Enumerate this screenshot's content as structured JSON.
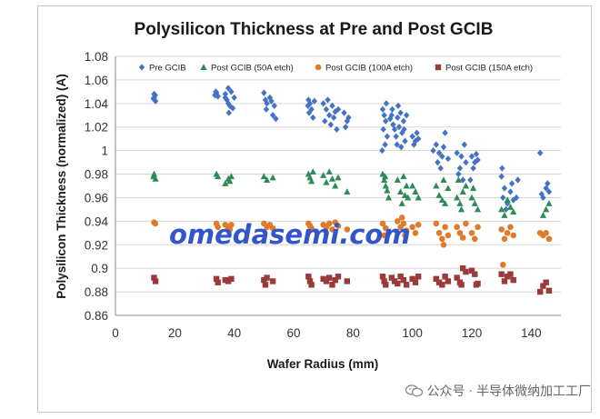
{
  "chart_data": {
    "type": "scatter",
    "title": "Polysilicon Thickness at Pre and Post GCIB",
    "xlabel": "Wafer Radius (mm)",
    "ylabel": "Polysilicon Thickness (normalized) (A)",
    "xlim": [
      0,
      150
    ],
    "ylim": [
      0.86,
      1.08
    ],
    "xticks": [
      "0",
      "20",
      "40",
      "60",
      "80",
      "100",
      "120",
      "140"
    ],
    "yticks": [
      "0.86",
      "0.88",
      "0.9",
      "0.92",
      "0.94",
      "0.96",
      "0.98",
      "1",
      "1.02",
      "1.04",
      "1.06",
      "1.08"
    ],
    "grid": "horizontal",
    "legend_position": "top",
    "series": [
      {
        "name": "Pre GCIB",
        "marker": "diamond",
        "color": "#4472c4",
        "points": [
          [
            13,
            1.048
          ],
          [
            13,
            1.045
          ],
          [
            13.5,
            1.042
          ],
          [
            12.8,
            1.044
          ],
          [
            13.4,
            1.047
          ],
          [
            34,
            1.049
          ],
          [
            33.5,
            1.047
          ],
          [
            34.5,
            1.046
          ],
          [
            33.8,
            1.05
          ],
          [
            37,
            1.045
          ],
          [
            38,
            1.04
          ],
          [
            39,
            1.05
          ],
          [
            38.5,
            1.038
          ],
          [
            37.5,
            1.043
          ],
          [
            40,
            1.045
          ],
          [
            39.5,
            1.036
          ],
          [
            38,
            1.053
          ],
          [
            37,
            1.048
          ],
          [
            38.2,
            1.032
          ],
          [
            50,
            1.049
          ],
          [
            50.5,
            1.043
          ],
          [
            51,
            1.04
          ],
          [
            52,
            1.045
          ],
          [
            50.8,
            1.035
          ],
          [
            53,
            1.03
          ],
          [
            53.5,
            1.038
          ],
          [
            52.5,
            1.042
          ],
          [
            54,
            1.027
          ],
          [
            65,
            1.043
          ],
          [
            65.5,
            1.04
          ],
          [
            66,
            1.035
          ],
          [
            64.8,
            1.038
          ],
          [
            66.5,
            1.028
          ],
          [
            67,
            1.042
          ],
          [
            65.2,
            1.032
          ],
          [
            70,
            1.04
          ],
          [
            71,
            1.035
          ],
          [
            72,
            1.03
          ],
          [
            70.5,
            1.025
          ],
          [
            73,
            1.038
          ],
          [
            74,
            1.033
          ],
          [
            72.5,
            1.022
          ],
          [
            71.5,
            1.043
          ],
          [
            73.5,
            1.028
          ],
          [
            74.5,
            1.018
          ],
          [
            75,
            1.035
          ],
          [
            77,
            1.032
          ],
          [
            78,
            1.025
          ],
          [
            77.5,
            1.02
          ],
          [
            78.5,
            1.028
          ],
          [
            90,
            1.035
          ],
          [
            90.5,
            1.03
          ],
          [
            91,
            1.025
          ],
          [
            90.2,
            1.018
          ],
          [
            91.5,
            1.012
          ],
          [
            90.8,
            1.005
          ],
          [
            89.8,
            1.0
          ],
          [
            91.2,
            1.04
          ],
          [
            93,
            1.03
          ],
          [
            93.5,
            1.022
          ],
          [
            94,
            1.018
          ],
          [
            94.5,
            1.012
          ],
          [
            93.2,
            1.035
          ],
          [
            95,
            1.028
          ],
          [
            95.5,
            1.02
          ],
          [
            96,
            1.032
          ],
          [
            96.5,
            1.015
          ],
          [
            97,
            1.025
          ],
          [
            97.5,
            1.008
          ],
          [
            96.2,
            1.003
          ],
          [
            94.8,
            1.005
          ],
          [
            92.5,
            1.027
          ],
          [
            95.2,
            1.038
          ],
          [
            97.2,
            1.018
          ],
          [
            98,
            1.03
          ],
          [
            100,
            1.012
          ],
          [
            101,
            1.008
          ],
          [
            101.5,
            1.015
          ],
          [
            102,
            1.01
          ],
          [
            100.5,
            1.005
          ],
          [
            107,
            1.0
          ],
          [
            108,
            1.005
          ],
          [
            109,
            0.998
          ],
          [
            110,
            0.995
          ],
          [
            108.5,
            0.99
          ],
          [
            110.5,
            1.003
          ],
          [
            111,
            1.015
          ],
          [
            112,
            0.993
          ],
          [
            109.5,
            0.985
          ],
          [
            115,
            0.998
          ],
          [
            116,
            0.985
          ],
          [
            117,
            0.975
          ],
          [
            116.5,
            0.995
          ],
          [
            117.5,
            1.005
          ],
          [
            118,
            0.99
          ],
          [
            115.5,
            0.98
          ],
          [
            120,
            0.995
          ],
          [
            121,
            0.99
          ],
          [
            122,
            0.992
          ],
          [
            120.5,
            0.985
          ],
          [
            121.5,
            0.997
          ],
          [
            119.5,
            0.975
          ],
          [
            130,
            0.978
          ],
          [
            131,
            0.968
          ],
          [
            130.5,
            0.96
          ],
          [
            132,
            0.955
          ],
          [
            133,
            0.965
          ],
          [
            133.5,
            0.972
          ],
          [
            134,
            0.958
          ],
          [
            135,
            0.96
          ],
          [
            135.5,
            0.975
          ],
          [
            131.5,
            0.95
          ],
          [
            130.2,
            0.985
          ],
          [
            143,
            0.998
          ],
          [
            143.5,
            0.963
          ],
          [
            144,
            0.96
          ],
          [
            145,
            0.968
          ],
          [
            145.5,
            0.972
          ],
          [
            146,
            0.965
          ]
        ]
      },
      {
        "name": "Post GCIB (50A etch)",
        "marker": "triangle",
        "color": "#2e8b57",
        "points": [
          [
            13,
            0.98
          ],
          [
            13.5,
            0.976
          ],
          [
            12.8,
            0.978
          ],
          [
            34,
            0.98
          ],
          [
            34.5,
            0.978
          ],
          [
            38,
            0.976
          ],
          [
            37,
            0.972
          ],
          [
            39,
            0.978
          ],
          [
            38.5,
            0.974
          ],
          [
            50,
            0.978
          ],
          [
            51,
            0.975
          ],
          [
            53,
            0.977
          ],
          [
            65,
            0.98
          ],
          [
            65.5,
            0.977
          ],
          [
            66,
            0.974
          ],
          [
            66.5,
            0.982
          ],
          [
            70,
            0.979
          ],
          [
            71,
            0.973
          ],
          [
            72,
            0.982
          ],
          [
            73,
            0.976
          ],
          [
            74,
            0.97
          ],
          [
            75,
            0.977
          ],
          [
            78,
            0.965
          ],
          [
            90,
            0.98
          ],
          [
            90.5,
            0.975
          ],
          [
            91,
            0.97
          ],
          [
            91.5,
            0.966
          ],
          [
            92,
            0.96
          ],
          [
            90.8,
            0.978
          ],
          [
            95,
            0.975
          ],
          [
            96,
            0.965
          ],
          [
            97,
            0.978
          ],
          [
            98,
            0.97
          ],
          [
            96.5,
            0.955
          ],
          [
            97.5,
            0.962
          ],
          [
            98.5,
            0.96
          ],
          [
            100,
            0.97
          ],
          [
            101,
            0.965
          ],
          [
            102,
            0.96
          ],
          [
            108,
            0.97
          ],
          [
            109,
            0.962
          ],
          [
            110,
            0.958
          ],
          [
            110.5,
            0.975
          ],
          [
            111,
            0.955
          ],
          [
            112,
            0.968
          ],
          [
            115,
            0.96
          ],
          [
            116,
            0.955
          ],
          [
            117,
            0.965
          ],
          [
            118,
            0.97
          ],
          [
            116.5,
            0.95
          ],
          [
            115.5,
            0.975
          ],
          [
            120,
            0.96
          ],
          [
            121,
            0.955
          ],
          [
            122,
            0.95
          ],
          [
            120.5,
            0.968
          ],
          [
            130,
            0.95
          ],
          [
            131,
            0.945
          ],
          [
            132,
            0.958
          ],
          [
            133,
            0.952
          ],
          [
            134,
            0.948
          ],
          [
            144,
            0.945
          ],
          [
            145,
            0.95
          ],
          [
            146,
            0.955
          ]
        ]
      },
      {
        "name": "Post GCIB (100A etch)",
        "marker": "circle",
        "color": "#e07b2c",
        "points": [
          [
            13,
            0.939
          ],
          [
            13.4,
            0.938
          ],
          [
            34,
            0.938
          ],
          [
            34.5,
            0.935
          ],
          [
            37,
            0.937
          ],
          [
            38,
            0.935
          ],
          [
            39,
            0.937
          ],
          [
            38.5,
            0.933
          ],
          [
            50,
            0.938
          ],
          [
            51,
            0.935
          ],
          [
            52,
            0.937
          ],
          [
            53,
            0.934
          ],
          [
            65,
            0.938
          ],
          [
            65.5,
            0.936
          ],
          [
            66,
            0.934
          ],
          [
            70,
            0.937
          ],
          [
            71,
            0.935
          ],
          [
            72,
            0.938
          ],
          [
            73,
            0.933
          ],
          [
            74,
            0.939
          ],
          [
            75,
            0.936
          ],
          [
            78,
            0.933
          ],
          [
            90,
            0.938
          ],
          [
            91,
            0.934
          ],
          [
            92,
            0.93
          ],
          [
            90.5,
            0.928
          ],
          [
            95,
            0.94
          ],
          [
            96,
            0.935
          ],
          [
            97,
            0.938
          ],
          [
            98,
            0.932
          ],
          [
            96.5,
            0.943
          ],
          [
            97.5,
            0.928
          ],
          [
            100,
            0.935
          ],
          [
            101,
            0.93
          ],
          [
            102,
            0.937
          ],
          [
            108,
            0.938
          ],
          [
            109,
            0.93
          ],
          [
            110,
            0.925
          ],
          [
            111,
            0.935
          ],
          [
            112,
            0.928
          ],
          [
            110.5,
            0.92
          ],
          [
            115,
            0.935
          ],
          [
            116,
            0.93
          ],
          [
            117,
            0.926
          ],
          [
            118,
            0.938
          ],
          [
            120,
            0.93
          ],
          [
            121,
            0.925
          ],
          [
            122,
            0.935
          ],
          [
            130,
            0.933
          ],
          [
            131,
            0.925
          ],
          [
            132,
            0.93
          ],
          [
            133,
            0.935
          ],
          [
            134,
            0.928
          ],
          [
            130.5,
            0.903
          ],
          [
            143,
            0.93
          ],
          [
            144,
            0.928
          ],
          [
            145,
            0.93
          ],
          [
            146,
            0.925
          ]
        ]
      },
      {
        "name": "Post GCIB (150A etch)",
        "marker": "square",
        "color": "#9b3a3a",
        "points": [
          [
            13,
            0.892
          ],
          [
            13.5,
            0.889
          ],
          [
            34,
            0.891
          ],
          [
            34.5,
            0.888
          ],
          [
            37,
            0.89
          ],
          [
            38,
            0.889
          ],
          [
            39,
            0.891
          ],
          [
            50,
            0.89
          ],
          [
            50.5,
            0.886
          ],
          [
            51,
            0.892
          ],
          [
            53,
            0.889
          ],
          [
            65,
            0.893
          ],
          [
            65.5,
            0.889
          ],
          [
            66,
            0.886
          ],
          [
            70,
            0.891
          ],
          [
            71,
            0.889
          ],
          [
            72,
            0.892
          ],
          [
            73,
            0.886
          ],
          [
            74,
            0.89
          ],
          [
            75,
            0.893
          ],
          [
            78,
            0.889
          ],
          [
            90,
            0.893
          ],
          [
            90.5,
            0.889
          ],
          [
            91,
            0.886
          ],
          [
            93,
            0.892
          ],
          [
            94,
            0.889
          ],
          [
            95,
            0.887
          ],
          [
            96,
            0.893
          ],
          [
            97,
            0.89
          ],
          [
            98,
            0.886
          ],
          [
            100,
            0.891
          ],
          [
            101,
            0.888
          ],
          [
            102,
            0.893
          ],
          [
            108,
            0.891
          ],
          [
            109,
            0.888
          ],
          [
            110,
            0.886
          ],
          [
            111,
            0.893
          ],
          [
            112,
            0.889
          ],
          [
            115,
            0.892
          ],
          [
            116,
            0.888
          ],
          [
            117,
            0.9
          ],
          [
            118,
            0.897
          ],
          [
            116.5,
            0.886
          ],
          [
            120,
            0.898
          ],
          [
            121,
            0.895
          ],
          [
            122,
            0.887
          ],
          [
            121.5,
            0.886
          ],
          [
            130,
            0.895
          ],
          [
            131,
            0.889
          ],
          [
            132,
            0.893
          ],
          [
            133,
            0.895
          ],
          [
            134,
            0.89
          ],
          [
            143,
            0.88
          ],
          [
            144,
            0.885
          ],
          [
            145,
            0.888
          ],
          [
            146,
            0.881
          ]
        ]
      }
    ]
  },
  "watermark": "omedasemi.com",
  "footer": {
    "icon": "wechat-icon",
    "account_label": "公众号",
    "separator": "·",
    "account_name": "半导体微纳加工工厂"
  }
}
